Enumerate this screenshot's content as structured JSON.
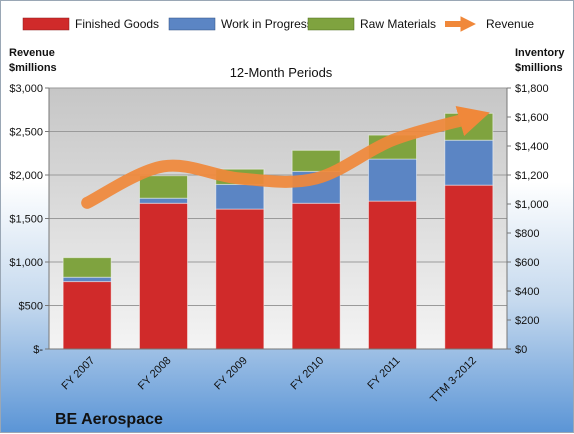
{
  "chart_data": {
    "type": "bar",
    "subtitle": "12-Month Periods",
    "company": "BE Aerospace",
    "left_axis": {
      "title_line1": "Revenue",
      "title_line2": "$millions",
      "range": [
        0,
        3000
      ],
      "ticks": [
        {
          "value": 0,
          "label": "$-"
        },
        {
          "value": 500,
          "label": "$500"
        },
        {
          "value": 1000,
          "label": "$1,000"
        },
        {
          "value": 1500,
          "label": "$1,500"
        },
        {
          "value": 2000,
          "label": "$2,000"
        },
        {
          "value": 2500,
          "label": "$2,500"
        },
        {
          "value": 3000,
          "label": "$3,000"
        }
      ]
    },
    "right_axis": {
      "title_line1": "Inventory",
      "title_line2": "$millions",
      "range": [
        0,
        1800
      ],
      "ticks": [
        {
          "value": 0,
          "label": "$0"
        },
        {
          "value": 200,
          "label": "$200"
        },
        {
          "value": 400,
          "label": "$400"
        },
        {
          "value": 600,
          "label": "$600"
        },
        {
          "value": 800,
          "label": "$800"
        },
        {
          "value": 1000,
          "label": "$1,000"
        },
        {
          "value": 1200,
          "label": "$1,200"
        },
        {
          "value": 1400,
          "label": "$1,400"
        },
        {
          "value": 1600,
          "label": "$1,600"
        },
        {
          "value": 1800,
          "label": "$1,800"
        }
      ]
    },
    "categories": [
      "FY 2007",
      "FY 2008",
      "FY 2009",
      "FY 2010",
      "FY 2011",
      "TTM 3-2012"
    ],
    "stacked_series": [
      {
        "name": "Finished Goods",
        "color": "#d02a2a",
        "values": [
          465,
          1005,
          965,
          1005,
          1020,
          1130
        ]
      },
      {
        "name": "Work in Progress",
        "color": "#5b85c4",
        "values": [
          30,
          35,
          170,
          220,
          290,
          310
        ]
      },
      {
        "name": "Raw Materials",
        "color": "#7fa33f",
        "values": [
          135,
          155,
          105,
          145,
          165,
          185
        ]
      }
    ],
    "line_series": {
      "name": "Revenue",
      "color": "#f0883a",
      "axis": "left",
      "values": [
        1680,
        2100,
        1960,
        1960,
        2400,
        2650
      ]
    },
    "grid": true,
    "legend_position": "top"
  }
}
